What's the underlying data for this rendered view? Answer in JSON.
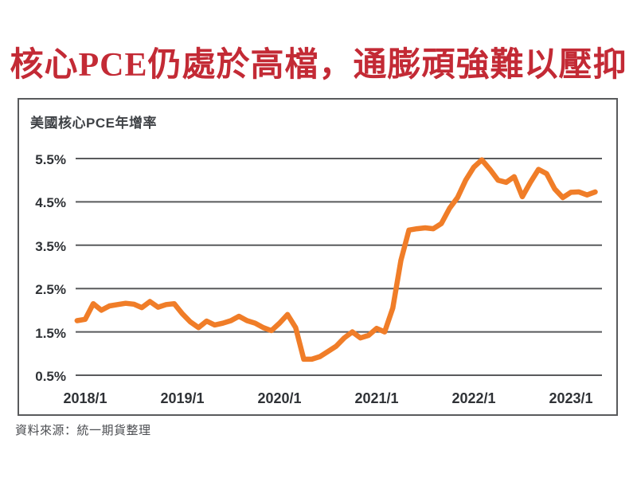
{
  "title": "核心PCE仍處於高檔，通膨頑強難以壓抑",
  "chart": {
    "label": "美國核心PCE年增率",
    "source": "資料來源：統一期貨整理"
  },
  "colors": {
    "title_red": "#c32a35",
    "line_orange": "#f07d28",
    "grid_gray": "#595a5c",
    "tick_text": "#2f3236"
  },
  "chart_data": {
    "type": "line",
    "title": "美國核心PCE年增率",
    "x_unit": "month",
    "grid": "horizontal",
    "legend": "none",
    "y_tick_labels": [
      "5.5%",
      "4.5%",
      "3.5%",
      "2.5%",
      "1.5%",
      "0.5%"
    ],
    "y_tick_values": [
      5.5,
      4.5,
      3.5,
      2.5,
      1.5,
      0.5
    ],
    "ylim": [
      0.5,
      5.5
    ],
    "x_tick_labels": [
      "2018/1",
      "2019/1",
      "2020/1",
      "2021/1",
      "2022/1",
      "2023/1"
    ],
    "months": [
      "2017/12",
      "2018/1",
      "2018/2",
      "2018/3",
      "2018/4",
      "2018/5",
      "2018/6",
      "2018/7",
      "2018/8",
      "2018/9",
      "2018/10",
      "2018/11",
      "2018/12",
      "2019/1",
      "2019/2",
      "2019/3",
      "2019/4",
      "2019/5",
      "2019/6",
      "2019/7",
      "2019/8",
      "2019/9",
      "2019/10",
      "2019/11",
      "2019/12",
      "2020/1",
      "2020/2",
      "2020/3",
      "2020/4",
      "2020/5",
      "2020/6",
      "2020/7",
      "2020/8",
      "2020/9",
      "2020/10",
      "2020/11",
      "2020/12",
      "2021/1",
      "2021/2",
      "2021/3",
      "2021/4",
      "2021/5",
      "2021/6",
      "2021/7",
      "2021/8",
      "2021/9",
      "2021/10",
      "2021/11",
      "2021/12",
      "2022/1",
      "2022/2",
      "2022/3",
      "2022/4",
      "2022/5",
      "2022/6",
      "2022/7",
      "2022/8",
      "2022/9",
      "2022/10",
      "2022/11",
      "2022/12",
      "2023/1",
      "2023/2",
      "2023/3",
      "2023/4"
    ],
    "values": [
      1.76,
      1.79,
      2.15,
      2.0,
      2.1,
      2.13,
      2.16,
      2.14,
      2.06,
      2.2,
      2.07,
      2.13,
      2.15,
      1.92,
      1.73,
      1.6,
      1.75,
      1.66,
      1.7,
      1.76,
      1.86,
      1.76,
      1.7,
      1.6,
      1.53,
      1.7,
      1.9,
      1.6,
      0.87,
      0.87,
      0.93,
      1.05,
      1.17,
      1.36,
      1.5,
      1.36,
      1.42,
      1.58,
      1.5,
      2.05,
      3.15,
      3.85,
      3.88,
      3.9,
      3.88,
      4.0,
      4.35,
      4.6,
      5.0,
      5.3,
      5.47,
      5.25,
      5.0,
      4.95,
      5.08,
      4.62,
      4.95,
      5.25,
      5.15,
      4.8,
      4.6,
      4.72,
      4.73,
      4.66,
      4.73
    ]
  }
}
